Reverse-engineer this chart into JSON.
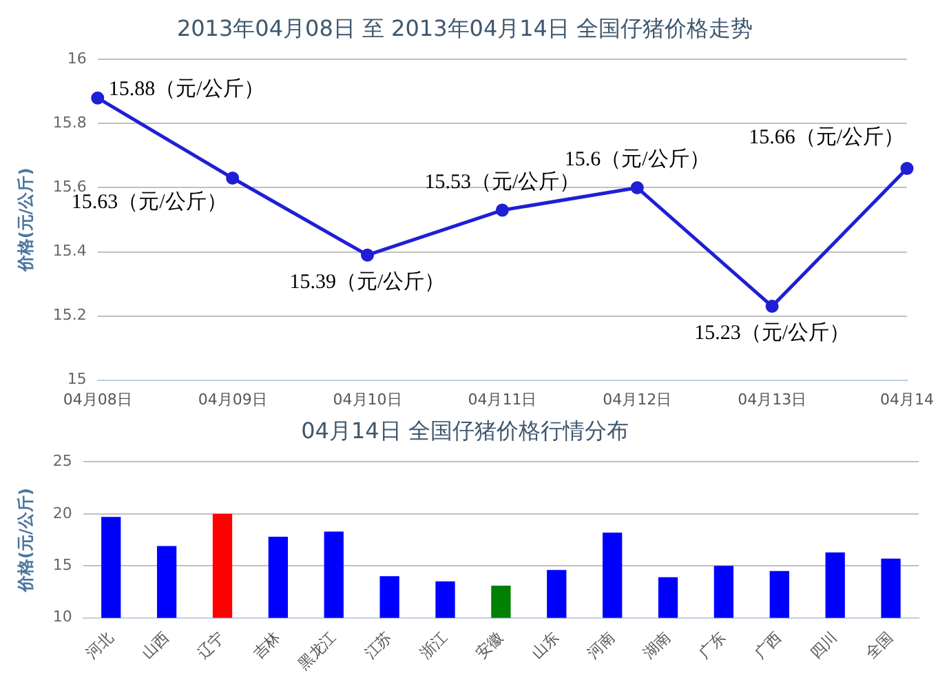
{
  "chart_data": [
    {
      "type": "line",
      "title": "2013年04月08日 至 2013年04月14日 全国仔猪价格走势",
      "ylabel": "价格(元/公斤)",
      "categories": [
        "04月08日",
        "04月09日",
        "04月10日",
        "04月11日",
        "04月12日",
        "04月13日",
        "04月14"
      ],
      "series": [
        {
          "color": "#1f1fd6",
          "values": [
            15.88,
            15.63,
            15.39,
            15.53,
            15.6,
            15.23,
            15.66
          ],
          "value_labels": [
            "15.88（元/公斤）",
            "15.63（元/公斤）",
            "15.39（元/公斤）",
            "15.53（元/公斤）",
            "15.6（元/公斤）",
            "15.23（元/公斤）",
            "15.66（元/公斤）"
          ]
        }
      ],
      "ylim": [
        15,
        16
      ],
      "yticks": [
        15,
        15.2,
        15.4,
        15.6,
        15.8,
        16
      ],
      "grid": "y",
      "marker": "circle",
      "line_style": "solid",
      "legend": false
    },
    {
      "type": "bar",
      "title": "04月14日 全国仔猪价格行情分布",
      "ylabel": "价格(元/公斤)",
      "categories": [
        "河北",
        "山西",
        "辽宁",
        "吉林",
        "黑龙江",
        "江苏",
        "浙江",
        "安徽",
        "山东",
        "河南",
        "湖南",
        "广东",
        "广西",
        "四川",
        "全国"
      ],
      "values": [
        19.7,
        16.9,
        20.0,
        17.8,
        18.3,
        14.0,
        13.5,
        13.1,
        14.6,
        18.2,
        13.9,
        15.0,
        14.5,
        16.3,
        15.7
      ],
      "colors": [
        "#0000ff",
        "#0000ff",
        "#ff0000",
        "#0000ff",
        "#0000ff",
        "#0000ff",
        "#0000ff",
        "#008000",
        "#0000ff",
        "#0000ff",
        "#0000ff",
        "#0000ff",
        "#0000ff",
        "#0000ff",
        "#0000ff"
      ],
      "ylim": [
        10,
        25
      ],
      "yticks": [
        10,
        15,
        20,
        25
      ],
      "grid": "y",
      "legend": false
    }
  ]
}
